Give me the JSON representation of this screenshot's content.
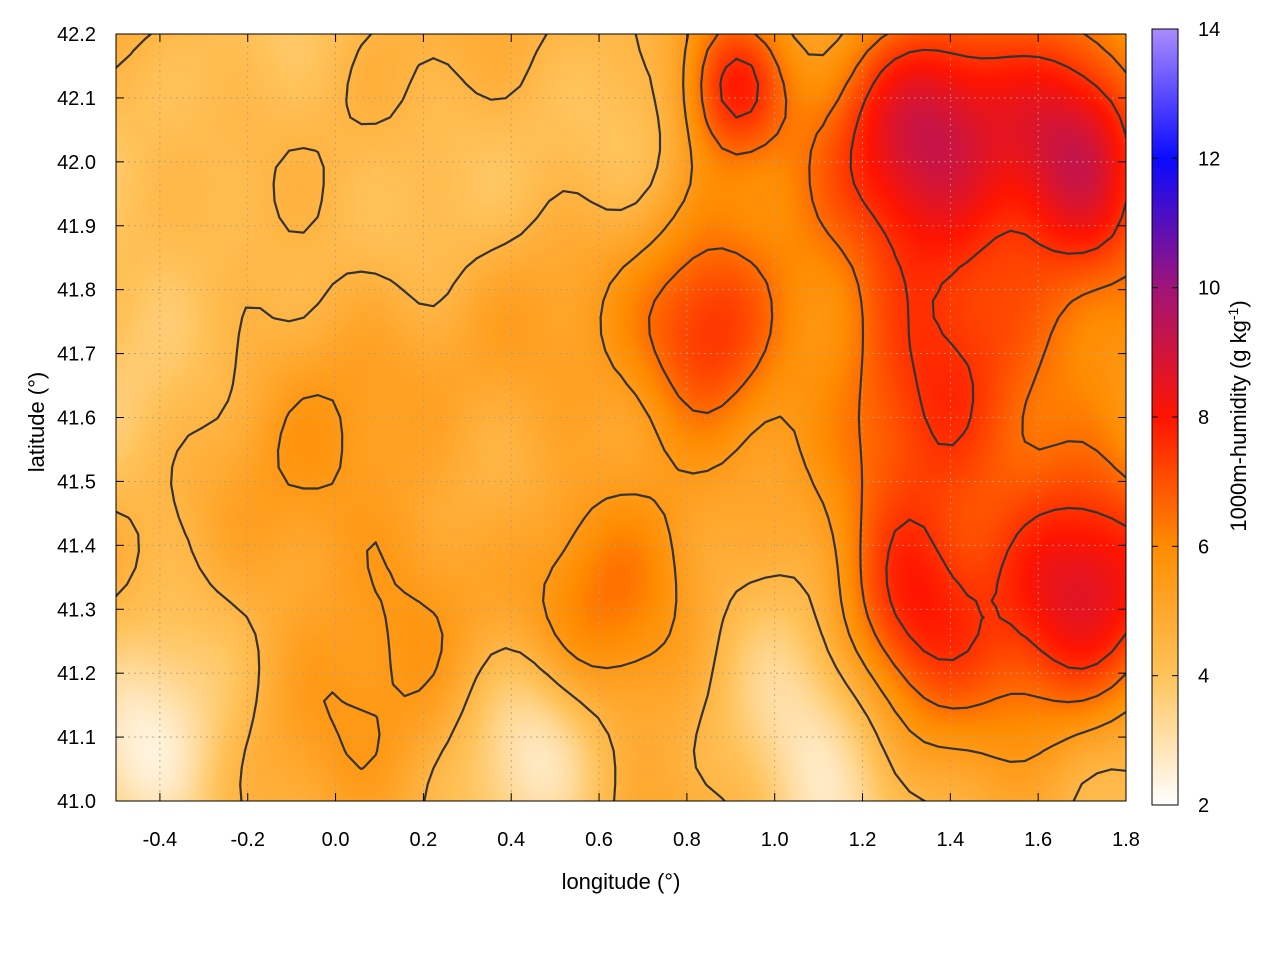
{
  "chart_data": {
    "type": "heatmap",
    "title": "",
    "xlabel": "longitude (°)",
    "ylabel": "latitude (°)",
    "colorbar_label": "1000m-humidity (g kg",
    "colorbar_label_sup": "-1",
    "colorbar_label_end": ")",
    "xlim": [
      -0.5,
      1.8
    ],
    "ylim": [
      41.0,
      42.2
    ],
    "x_ticks": [
      "-0.4",
      "-0.2",
      "0.0",
      "0.2",
      "0.4",
      "0.6",
      "0.8",
      "1.0",
      "1.2",
      "1.4",
      "1.6",
      "1.8"
    ],
    "y_ticks": [
      "41.0",
      "41.1",
      "41.2",
      "41.3",
      "41.4",
      "41.5",
      "41.6",
      "41.7",
      "41.8",
      "41.9",
      "42.0",
      "42.1",
      "42.2"
    ],
    "colorbar_range": [
      2,
      14
    ],
    "colorbar_ticks": [
      "2",
      "4",
      "6",
      "8",
      "10",
      "12",
      "14"
    ],
    "colormap": [
      {
        "value": 2,
        "color": "#ffffff"
      },
      {
        "value": 4,
        "color": "#ffc35a"
      },
      {
        "value": 6,
        "color": "#ff8c00"
      },
      {
        "value": 8,
        "color": "#ff1400"
      },
      {
        "value": 10,
        "color": "#a01478"
      },
      {
        "value": 12,
        "color": "#0a0aff"
      },
      {
        "value": 14,
        "color": "#aa8cff"
      }
    ],
    "grid": true,
    "contour_color": "#333333",
    "field_hotspots": [
      {
        "lon": 0.85,
        "lat": 41.72,
        "value": 8.0,
        "spread": 0.18
      },
      {
        "lon": 0.9,
        "lat": 42.12,
        "value": 7.8,
        "spread": 0.12
      },
      {
        "lon": 1.35,
        "lat": 42.05,
        "value": 8.8,
        "spread": 0.22
      },
      {
        "lon": 1.7,
        "lat": 42.0,
        "value": 8.6,
        "spread": 0.18
      },
      {
        "lon": 1.7,
        "lat": 41.35,
        "value": 8.8,
        "spread": 0.22
      },
      {
        "lon": 1.3,
        "lat": 41.3,
        "value": 7.6,
        "spread": 0.18
      },
      {
        "lon": 1.4,
        "lat": 41.7,
        "value": 7.2,
        "spread": 0.25
      },
      {
        "lon": 0.05,
        "lat": 41.7,
        "value": 5.4,
        "spread": 0.22
      },
      {
        "lon": 0.2,
        "lat": 41.35,
        "value": 5.8,
        "spread": 0.18
      },
      {
        "lon": 0.6,
        "lat": 41.3,
        "value": 5.8,
        "spread": 0.2
      },
      {
        "lon": -0.1,
        "lat": 41.2,
        "value": 5.0,
        "spread": 0.2
      }
    ],
    "field_lows": [
      {
        "lon": -0.45,
        "lat": 41.05,
        "value": -2.0,
        "spread": 0.18
      },
      {
        "lon": 0.45,
        "lat": 41.1,
        "value": -1.5,
        "spread": 0.15
      },
      {
        "lon": 1.1,
        "lat": 41.05,
        "value": -1.8,
        "spread": 0.2
      },
      {
        "lon": -0.35,
        "lat": 41.9,
        "value": -1.0,
        "spread": 0.25
      },
      {
        "lon": 0.3,
        "lat": 42.05,
        "value": -0.8,
        "spread": 0.2
      }
    ],
    "field_base": 4.6
  }
}
